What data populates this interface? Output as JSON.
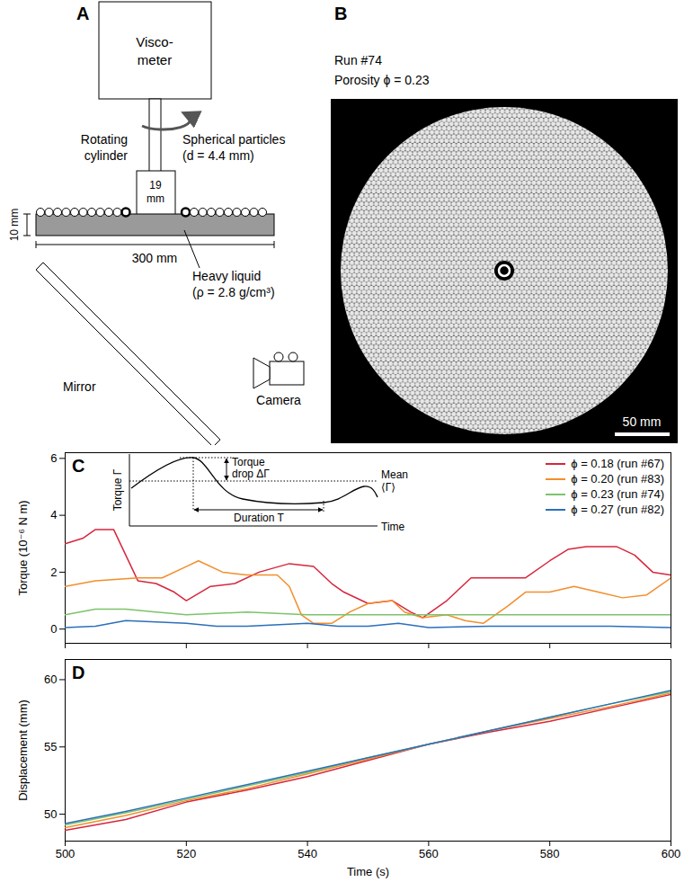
{
  "diagram": {
    "panel_label": "A",
    "viscometer": [
      "Visco-",
      "meter"
    ],
    "rotating_cylinder": [
      "Rotating",
      "cylinder"
    ],
    "cylinder_width": [
      "19",
      "mm"
    ],
    "particles": [
      "Spherical particles",
      "(d = 4.4 mm)"
    ],
    "depth": "10 mm",
    "width": "300 mm",
    "liquid": [
      "Heavy liquid",
      "(ρ = 2.8 g/cm³)"
    ],
    "mirror": "Mirror",
    "camera": "Camera"
  },
  "photo": {
    "panel_label": "B",
    "run": "Run #74",
    "porosity": "Porosity ϕ = 0.23",
    "scale_bar": "50 mm"
  },
  "chart_data": [
    {
      "type": "line",
      "panel_label": "C",
      "y_label": "Torque (10⁻⁶ N m)",
      "xlim": [
        500,
        600
      ],
      "xticks": [
        500,
        520,
        540,
        560,
        580,
        600
      ],
      "ylim": [
        -0.5,
        6.2
      ],
      "yticks": [
        0,
        2,
        4,
        6
      ],
      "tick_labels": "y",
      "legend": "top-right",
      "inset": {
        "y_label": "Torque Γ",
        "x_label": "Time",
        "drop": [
          "Torque",
          "drop ΔΓ"
        ],
        "mean": [
          "Mean",
          "⟨Γ⟩"
        ],
        "duration": "Duration T"
      },
      "series": [
        {
          "name": "ϕ = 0.18 (run #67)",
          "color": "#d7263d",
          "x": [
            500,
            503,
            505,
            508,
            510,
            512,
            515,
            518,
            520,
            524,
            528,
            532,
            537,
            541,
            544,
            546,
            550,
            554,
            557,
            559,
            561,
            563,
            567,
            572,
            576,
            580,
            583,
            586,
            591,
            594,
            597,
            600
          ],
          "values": [
            3.0,
            3.2,
            3.5,
            3.5,
            2.6,
            1.7,
            1.6,
            1.3,
            1.0,
            1.5,
            1.6,
            2.0,
            2.3,
            2.2,
            1.6,
            1.3,
            0.9,
            1.0,
            0.6,
            0.4,
            0.7,
            1.0,
            1.8,
            1.8,
            1.8,
            2.4,
            2.8,
            2.9,
            2.9,
            2.6,
            2.0,
            1.9
          ]
        },
        {
          "name": "ϕ = 0.20 (run #83)",
          "color": "#f28e2b",
          "x": [
            500,
            505,
            512,
            516,
            520,
            522,
            526,
            530,
            535,
            537,
            539,
            541,
            544,
            547,
            550,
            554,
            556,
            559,
            563,
            566,
            569,
            573,
            576,
            580,
            584,
            588,
            592,
            596,
            600
          ],
          "values": [
            1.5,
            1.7,
            1.8,
            1.8,
            2.2,
            2.4,
            2.0,
            1.9,
            1.9,
            1.5,
            0.5,
            0.2,
            0.2,
            0.6,
            0.9,
            1.0,
            0.6,
            0.4,
            0.5,
            0.3,
            0.2,
            0.8,
            1.3,
            1.3,
            1.5,
            1.3,
            1.1,
            1.2,
            1.8
          ]
        },
        {
          "name": "ϕ = 0.23 (run #74)",
          "color": "#7cc36a",
          "x": [
            500,
            505,
            510,
            515,
            520,
            530,
            540,
            550,
            560,
            570,
            580,
            590,
            600
          ],
          "values": [
            0.5,
            0.7,
            0.7,
            0.6,
            0.5,
            0.6,
            0.5,
            0.5,
            0.5,
            0.5,
            0.5,
            0.5,
            0.5
          ]
        },
        {
          "name": "ϕ = 0.27 (run #82)",
          "color": "#2c6fbb",
          "x": [
            500,
            505,
            510,
            515,
            520,
            525,
            530,
            540,
            545,
            550,
            555,
            560,
            570,
            580,
            590,
            600
          ],
          "values": [
            0.05,
            0.1,
            0.3,
            0.25,
            0.2,
            0.1,
            0.1,
            0.2,
            0.1,
            0.1,
            0.2,
            0.05,
            0.1,
            0.1,
            0.1,
            0.05
          ]
        }
      ]
    },
    {
      "type": "line",
      "panel_label": "D",
      "x_label": "Time (s)",
      "y_label": "Displacement (mm)",
      "xlim": [
        500,
        600
      ],
      "xticks": [
        500,
        520,
        540,
        560,
        580,
        600
      ],
      "ylim": [
        48,
        61.5
      ],
      "yticks": [
        50,
        55,
        60
      ],
      "series": [
        {
          "color": "#d7263d",
          "x": [
            500,
            510,
            520,
            530,
            540,
            550,
            560,
            570,
            580,
            590,
            600
          ],
          "values": [
            48.8,
            49.6,
            50.9,
            51.8,
            52.8,
            54.0,
            55.2,
            56.1,
            56.9,
            57.9,
            58.9
          ]
        },
        {
          "color": "#f28e2b",
          "x": [
            500,
            510,
            520,
            530,
            540,
            550,
            560,
            570,
            580,
            590,
            600
          ],
          "values": [
            49.0,
            49.9,
            51.0,
            51.9,
            53.0,
            54.1,
            55.2,
            56.2,
            57.1,
            58.0,
            59.0
          ]
        },
        {
          "color": "#7cc36a",
          "x": [
            500,
            510,
            520,
            530,
            540,
            550,
            560,
            570,
            580,
            590,
            600
          ],
          "values": [
            49.2,
            50.1,
            51.1,
            52.1,
            53.1,
            54.2,
            55.2,
            56.2,
            57.2,
            58.2,
            59.1
          ]
        },
        {
          "color": "#2c6fbb",
          "x": [
            500,
            510,
            520,
            530,
            540,
            550,
            560,
            570,
            580,
            590,
            600
          ],
          "values": [
            49.3,
            50.2,
            51.2,
            52.2,
            53.2,
            54.2,
            55.2,
            56.2,
            57.2,
            58.2,
            59.2
          ]
        }
      ]
    }
  ]
}
